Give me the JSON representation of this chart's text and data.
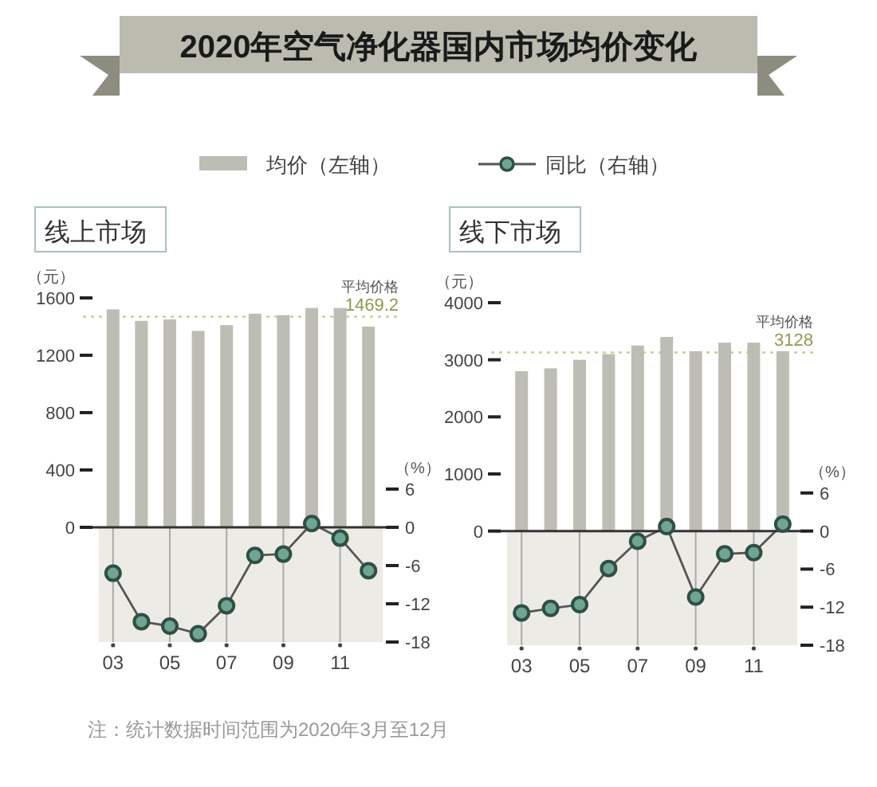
{
  "chart_data": [
    {
      "type": "bar",
      "title": "2020年空气净化器国内市场均价变化",
      "subtitle": "线上市场",
      "ylabel": "（元）",
      "y2label": "（%）",
      "categories": [
        "03",
        null,
        "05",
        null,
        "07",
        null,
        "09",
        null,
        "11",
        null
      ],
      "series": [
        {
          "name": "均价（左轴）",
          "color": "#bdbdb5",
          "values": [
            1520,
            1440,
            1450,
            1370,
            1410,
            1490,
            1480,
            1530,
            1530,
            1400
          ]
        },
        {
          "name": "同比（右轴）",
          "type": "line",
          "axis": "y2",
          "color": "#2f4f45",
          "values": [
            -7.2,
            -14.8,
            -15.5,
            -16.7,
            -12.3,
            -4.4,
            -4.2,
            0.6,
            -1.7,
            -6.8
          ]
        }
      ],
      "ylim": [
        -800,
        1600
      ],
      "yticks": [
        0,
        400,
        800,
        1200,
        1600
      ],
      "y2lim": [
        -18,
        6
      ],
      "y2ticks": [
        6,
        0,
        -6,
        -12,
        -18
      ],
      "ref_lines": [
        {
          "axis": "y",
          "value": 1469.2,
          "label": "平均价格\n1469.2",
          "color": "#c5cf96",
          "line_style": "dotted"
        },
        {
          "axis": "x",
          "value": "03",
          "color": "#aaaaaa"
        },
        {
          "axis": "x",
          "value": "05",
          "color": "#aaaaaa"
        },
        {
          "axis": "x",
          "value": "07",
          "color": "#aaaaaa"
        },
        {
          "axis": "x",
          "value": "09",
          "color": "#aaaaaa"
        },
        {
          "axis": "x",
          "value": "11",
          "color": "#aaaaaa"
        }
      ],
      "bands": [
        {
          "axis": "y2",
          "from": -18,
          "to": 0,
          "color": "#ecebe6"
        }
      ],
      "legend": "top",
      "marker": "circle",
      "line_style": "solid",
      "annotations": [
        "注：统计数据时间范围为2020年3月至12月"
      ]
    },
    {
      "type": "bar",
      "subtitle": "线下市场",
      "ylabel": "（元）",
      "y2label": "（%）",
      "categories": [
        "03",
        null,
        "05",
        null,
        "07",
        null,
        "09",
        null,
        "11",
        null
      ],
      "series": [
        {
          "color": "#bdbdb5",
          "values": [
            2800,
            2850,
            3000,
            3100,
            3250,
            3400,
            3150,
            3300,
            3300,
            3150
          ]
        },
        {
          "type": "line",
          "axis": "y2",
          "color": "#2f4f45",
          "values": [
            -12.9,
            -12.2,
            -11.6,
            -5.9,
            -1.6,
            0.7,
            -10.4,
            -3.6,
            -3.4,
            1.1
          ]
        }
      ],
      "ylim": [
        -2000,
        4000
      ],
      "yticks": [
        0,
        1000,
        2000,
        3000,
        4000
      ],
      "y2lim": [
        -18,
        6
      ],
      "y2ticks": [
        6,
        0,
        -6,
        -12,
        -18
      ],
      "ref_lines": [
        {
          "axis": "y",
          "value": 3128,
          "label": "平均价格\n3128",
          "color": "#c5cf96",
          "line_style": "dotted"
        },
        {
          "axis": "x",
          "value": "03",
          "color": "#aaaaaa"
        },
        {
          "axis": "x",
          "value": "05",
          "color": "#aaaaaa"
        },
        {
          "axis": "x",
          "value": "07",
          "color": "#aaaaaa"
        },
        {
          "axis": "x",
          "value": "09",
          "color": "#aaaaaa"
        },
        {
          "axis": "x",
          "value": "11",
          "color": "#aaaaaa"
        }
      ],
      "bands": [
        {
          "axis": "y2",
          "from": -18,
          "to": 0,
          "color": "#ecebe6"
        }
      ],
      "marker": "circle",
      "line_style": "solid"
    }
  ]
}
